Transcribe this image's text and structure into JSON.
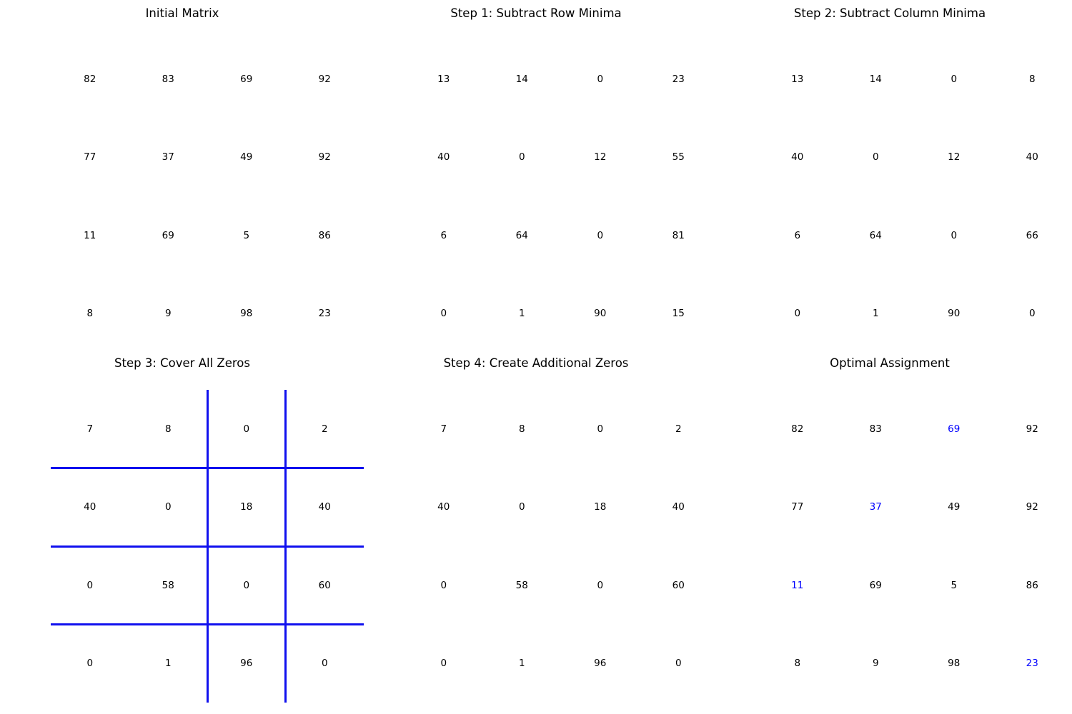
{
  "highlight_color": "#0000ff",
  "cover_line_color": "#1010ee",
  "panels": [
    {
      "title": "Initial Matrix",
      "matrix": [
        [
          82,
          83,
          69,
          92
        ],
        [
          77,
          37,
          49,
          92
        ],
        [
          11,
          69,
          5,
          86
        ],
        [
          8,
          9,
          98,
          23
        ]
      ]
    },
    {
      "title": "Step 1: Subtract Row Minima",
      "matrix": [
        [
          13,
          14,
          0,
          23
        ],
        [
          40,
          0,
          12,
          55
        ],
        [
          6,
          64,
          0,
          81
        ],
        [
          0,
          1,
          90,
          15
        ]
      ]
    },
    {
      "title": "Step 2: Subtract Column Minima",
      "matrix": [
        [
          13,
          14,
          0,
          8
        ],
        [
          40,
          0,
          12,
          40
        ],
        [
          6,
          64,
          0,
          66
        ],
        [
          0,
          1,
          90,
          0
        ]
      ]
    },
    {
      "title": "Step 3: Cover All Zeros",
      "matrix": [
        [
          7,
          8,
          0,
          2
        ],
        [
          40,
          0,
          18,
          40
        ],
        [
          0,
          58,
          0,
          60
        ],
        [
          0,
          1,
          96,
          0
        ]
      ],
      "covered_rows": [
        1,
        2,
        3
      ],
      "covered_cols": [
        2,
        3
      ]
    },
    {
      "title": "Step 4: Create Additional Zeros",
      "matrix": [
        [
          7,
          8,
          0,
          2
        ],
        [
          40,
          0,
          18,
          40
        ],
        [
          0,
          58,
          0,
          60
        ],
        [
          0,
          1,
          96,
          0
        ]
      ]
    },
    {
      "title": "Optimal Assignment",
      "matrix": [
        [
          82,
          83,
          69,
          92
        ],
        [
          77,
          37,
          49,
          92
        ],
        [
          11,
          69,
          5,
          86
        ],
        [
          8,
          9,
          98,
          23
        ]
      ],
      "assignment": [
        [
          0,
          2
        ],
        [
          1,
          1
        ],
        [
          2,
          0
        ],
        [
          3,
          3
        ]
      ]
    }
  ]
}
